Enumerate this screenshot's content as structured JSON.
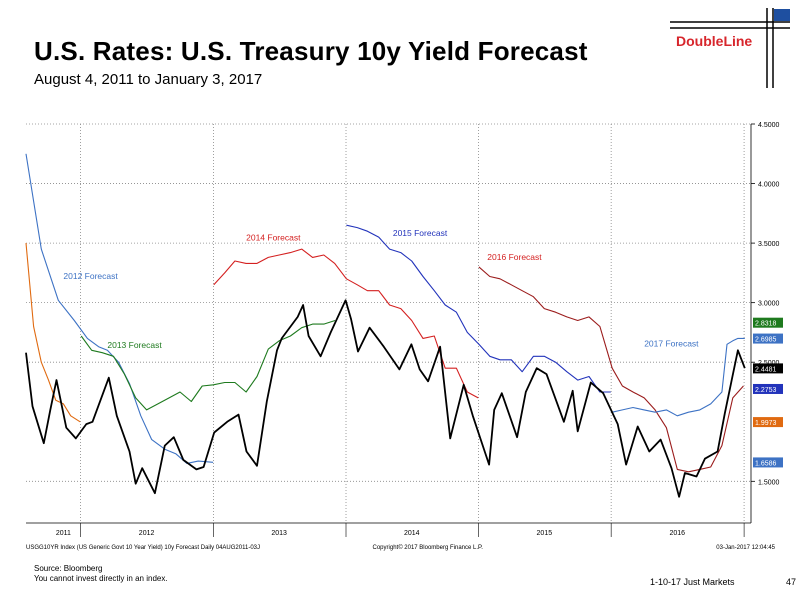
{
  "header": {
    "title": "U.S. Rates: U.S. Treasury 10y Yield Forecast",
    "subtitle": "August 4, 2011 to January 3, 2017",
    "logo_text": "DoubleLine"
  },
  "footer": {
    "source": "Source: Bloomberg",
    "disclaimer": "You cannot invest directly in an index.",
    "tag": "1-10-17 Just Markets",
    "page": "47"
  },
  "chart_data": {
    "type": "line",
    "ylim": [
      1.15,
      4.5
    ],
    "xlim": [
      "2011-08-04",
      "2017-01-20"
    ],
    "yticks": [
      "4.5000",
      "4.0000",
      "3.5000",
      "3.0000",
      "2.5000",
      "1.5000"
    ],
    "ytick_values": [
      4.5,
      4.0,
      3.5,
      3.0,
      2.5,
      1.5
    ],
    "year_labels": [
      {
        "label": "2011",
        "x": "2011-11-15"
      },
      {
        "label": "2012",
        "x": "2012-07-01"
      },
      {
        "label": "2013",
        "x": "2013-07-01"
      },
      {
        "label": "2014",
        "x": "2014-07-01"
      },
      {
        "label": "2015",
        "x": "2015-07-01"
      },
      {
        "label": "2016",
        "x": "2016-07-01"
      }
    ],
    "year_bounds": [
      "2012-01-01",
      "2013-01-01",
      "2014-01-01",
      "2015-01-01",
      "2016-01-01",
      "2017-01-01"
    ],
    "bottom_left_caption": "USGG10YR Index (US Generic Govt 10 Year Yield) 10y Forecast  Daily 04AUG2011-03J",
    "bottom_mid_caption": "Copyright© 2017 Bloomberg Finance L.P.",
    "bottom_right_caption": "03-Jan-2017 12:04:45",
    "series": [
      {
        "name": "",
        "color": "#000000",
        "x": [
          "2011-08-04",
          "2011-08-22",
          "2011-09-22",
          "2011-10-10",
          "2011-10-27",
          "2011-11-23",
          "2011-12-19",
          "2012-01-17",
          "2012-02-03",
          "2012-03-19",
          "2012-04-10",
          "2012-05-15",
          "2012-06-01",
          "2012-06-19",
          "2012-07-24",
          "2012-08-20",
          "2012-09-14",
          "2012-10-10",
          "2012-11-15",
          "2012-12-05",
          "2013-01-03",
          "2013-02-08",
          "2013-03-11",
          "2013-04-02",
          "2013-05-01",
          "2013-05-28",
          "2013-06-25",
          "2013-07-08",
          "2013-08-21",
          "2013-09-05",
          "2013-09-20",
          "2013-10-23",
          "2013-11-20",
          "2013-12-31",
          "2014-01-15",
          "2014-02-03",
          "2014-03-07",
          "2014-04-15",
          "2014-05-28",
          "2014-06-30",
          "2014-07-23",
          "2014-08-15",
          "2014-09-17",
          "2014-10-15",
          "2014-11-21",
          "2014-12-16",
          "2015-01-30",
          "2015-02-13",
          "2015-03-06",
          "2015-04-17",
          "2015-05-11",
          "2015-06-10",
          "2015-07-07",
          "2015-08-24",
          "2015-09-17",
          "2015-10-01",
          "2015-11-06",
          "2015-12-10",
          "2016-01-19",
          "2016-02-11",
          "2016-03-14",
          "2016-04-15",
          "2016-05-16",
          "2016-06-15",
          "2016-07-06",
          "2016-07-22",
          "2016-08-23",
          "2016-09-15",
          "2016-10-20",
          "2016-11-09",
          "2016-11-28",
          "2016-12-15",
          "2017-01-03"
        ],
        "values": [
          2.58,
          2.13,
          1.82,
          2.1,
          2.35,
          1.95,
          1.86,
          1.98,
          2.0,
          2.37,
          2.05,
          1.75,
          1.48,
          1.61,
          1.4,
          1.8,
          1.87,
          1.68,
          1.6,
          1.62,
          1.91,
          2.0,
          2.06,
          1.75,
          1.63,
          2.17,
          2.6,
          2.7,
          2.88,
          2.98,
          2.72,
          2.55,
          2.75,
          3.02,
          2.86,
          2.59,
          2.79,
          2.63,
          2.44,
          2.65,
          2.44,
          2.34,
          2.63,
          1.86,
          2.31,
          2.05,
          1.64,
          2.1,
          2.24,
          1.87,
          2.25,
          2.45,
          2.4,
          2.0,
          2.26,
          1.92,
          2.33,
          2.24,
          1.98,
          1.64,
          1.96,
          1.75,
          1.85,
          1.61,
          1.37,
          1.57,
          1.54,
          1.69,
          1.75,
          2.07,
          2.35,
          2.6,
          2.45
        ]
      },
      {
        "name": "2012 Forecast",
        "color": "#3d72c4",
        "x": [
          "2011-08-04",
          "2011-09-15",
          "2011-11-01",
          "2011-12-15",
          "2012-01-20",
          "2012-02-20",
          "2012-03-15",
          "2012-04-15",
          "2012-05-15",
          "2012-06-15",
          "2012-07-15",
          "2012-08-20",
          "2012-09-20",
          "2012-10-20",
          "2012-11-20",
          "2012-12-31"
        ],
        "values": [
          4.25,
          3.45,
          3.02,
          2.85,
          2.7,
          2.63,
          2.6,
          2.5,
          2.32,
          2.05,
          1.85,
          1.77,
          1.73,
          1.65,
          1.67,
          1.66
        ]
      },
      {
        "name": "2013 Forecast",
        "color": "#1e7a1e",
        "x": [
          "2012-01-03",
          "2012-02-01",
          "2012-03-01",
          "2012-04-01",
          "2012-05-01",
          "2012-06-01",
          "2012-07-01",
          "2012-08-01",
          "2012-09-01",
          "2012-10-01",
          "2012-11-01",
          "2012-12-01",
          "2013-01-01",
          "2013-02-01",
          "2013-03-01",
          "2013-04-01",
          "2013-05-01",
          "2013-06-01",
          "2013-07-01",
          "2013-08-01",
          "2013-09-01",
          "2013-10-01",
          "2013-11-01",
          "2013-12-02"
        ],
        "values": [
          2.72,
          2.6,
          2.58,
          2.55,
          2.4,
          2.2,
          2.1,
          2.15,
          2.2,
          2.25,
          2.17,
          2.3,
          2.31,
          2.33,
          2.33,
          2.25,
          2.38,
          2.61,
          2.68,
          2.72,
          2.79,
          2.82,
          2.82,
          2.85
        ]
      },
      {
        "name": "2014 Forecast",
        "color": "#d42020",
        "x": [
          "2013-01-02",
          "2013-02-01",
          "2013-03-01",
          "2013-04-01",
          "2013-05-01",
          "2013-06-01",
          "2013-07-01",
          "2013-08-01",
          "2013-09-01",
          "2013-10-01",
          "2013-11-01",
          "2013-12-01",
          "2014-01-02",
          "2014-02-01",
          "2014-03-01",
          "2014-04-01",
          "2014-05-01",
          "2014-06-01",
          "2014-07-01",
          "2014-08-01",
          "2014-09-01",
          "2014-10-01",
          "2014-11-01",
          "2014-12-01",
          "2014-12-31"
        ],
        "values": [
          3.15,
          3.25,
          3.35,
          3.33,
          3.33,
          3.38,
          3.4,
          3.42,
          3.45,
          3.38,
          3.4,
          3.33,
          3.2,
          3.15,
          3.1,
          3.1,
          2.98,
          2.95,
          2.85,
          2.7,
          2.72,
          2.45,
          2.45,
          2.25,
          2.2
        ]
      },
      {
        "name": "2015 Forecast",
        "color": "#2233bb",
        "x": [
          "2014-01-02",
          "2014-02-01",
          "2014-03-01",
          "2014-04-01",
          "2014-05-01",
          "2014-06-01",
          "2014-07-01",
          "2014-08-01",
          "2014-09-01",
          "2014-10-01",
          "2014-11-01",
          "2014-12-01",
          "2015-01-02",
          "2015-02-01",
          "2015-03-01",
          "2015-04-01",
          "2015-05-01",
          "2015-06-01",
          "2015-07-01",
          "2015-08-01",
          "2015-09-01",
          "2015-10-01",
          "2015-11-01",
          "2015-12-01",
          "2015-12-31"
        ],
        "values": [
          3.65,
          3.63,
          3.6,
          3.55,
          3.45,
          3.42,
          3.35,
          3.22,
          3.1,
          2.98,
          2.92,
          2.75,
          2.65,
          2.55,
          2.52,
          2.52,
          2.42,
          2.55,
          2.55,
          2.5,
          2.42,
          2.35,
          2.38,
          2.25,
          2.25
        ]
      },
      {
        "name": "2016 Forecast",
        "color": "#9b1c1c",
        "x": [
          "2015-01-02",
          "2015-02-01",
          "2015-03-01",
          "2015-04-01",
          "2015-05-01",
          "2015-06-01",
          "2015-07-01",
          "2015-08-01",
          "2015-09-01",
          "2015-10-01",
          "2015-11-01",
          "2015-12-01",
          "2016-01-04",
          "2016-02-01",
          "2016-03-01",
          "2016-04-01",
          "2016-05-01",
          "2016-06-01",
          "2016-07-01",
          "2016-08-01",
          "2016-09-01",
          "2016-10-01",
          "2016-11-01",
          "2016-12-01",
          "2016-12-30"
        ],
        "values": [
          3.3,
          3.22,
          3.2,
          3.15,
          3.1,
          3.05,
          2.95,
          2.92,
          2.88,
          2.85,
          2.88,
          2.8,
          2.45,
          2.3,
          2.25,
          2.2,
          2.1,
          1.95,
          1.6,
          1.58,
          1.6,
          1.62,
          1.8,
          2.2,
          2.3
        ]
      },
      {
        "name": "2017 Forecast",
        "color": "#3d72c4",
        "x": [
          "2016-01-04",
          "2016-02-01",
          "2016-03-01",
          "2016-04-01",
          "2016-05-01",
          "2016-06-01",
          "2016-07-01",
          "2016-08-01",
          "2016-09-01",
          "2016-10-01",
          "2016-11-01",
          "2016-11-15",
          "2016-12-01",
          "2016-12-15",
          "2017-01-03"
        ],
        "values": [
          2.08,
          2.1,
          2.12,
          2.1,
          2.08,
          2.1,
          2.05,
          2.08,
          2.1,
          2.15,
          2.25,
          2.65,
          2.68,
          2.7,
          2.7
        ]
      },
      {
        "name": "",
        "color": "#e06a10",
        "x": [
          "2011-08-04",
          "2011-08-25",
          "2011-09-15",
          "2011-10-05",
          "2011-10-25",
          "2011-11-15",
          "2011-12-05",
          "2011-12-31"
        ],
        "values": [
          3.5,
          2.8,
          2.5,
          2.35,
          2.18,
          2.15,
          2.05,
          2.0
        ]
      }
    ],
    "end_labels": [
      {
        "value": 2.8318,
        "label": "2.8318",
        "color": "#1e7a1e"
      },
      {
        "value": 2.6985,
        "label": "2.6985",
        "color": "#3d72c4"
      },
      {
        "value": 2.4481,
        "label": "2.4481",
        "color": "#000000"
      },
      {
        "value": 2.2753,
        "label": "2.2753",
        "color": "#2233bb"
      },
      {
        "value": 1.9973,
        "label": "1.9973",
        "color": "#e06a10"
      },
      {
        "value": 1.6586,
        "label": "1.6586",
        "color": "#3d72c4"
      }
    ],
    "series_labels": [
      {
        "text": "2012 Forecast",
        "color": "#3d72c4",
        "x": "2011-11-15",
        "y": 3.2
      },
      {
        "text": "2013 Forecast",
        "color": "#1e7a1e",
        "x": "2012-03-15",
        "y": 2.62
      },
      {
        "text": "2014 Forecast",
        "color": "#d42020",
        "x": "2013-04-01",
        "y": 3.52
      },
      {
        "text": "2015 Forecast",
        "color": "#2233bb",
        "x": "2014-05-10",
        "y": 3.56
      },
      {
        "text": "2016 Forecast",
        "color": "#d42020",
        "x": "2015-01-25",
        "y": 3.36
      },
      {
        "text": "2017 Forecast",
        "color": "#3d72c4",
        "x": "2016-04-01",
        "y": 2.63
      }
    ]
  }
}
